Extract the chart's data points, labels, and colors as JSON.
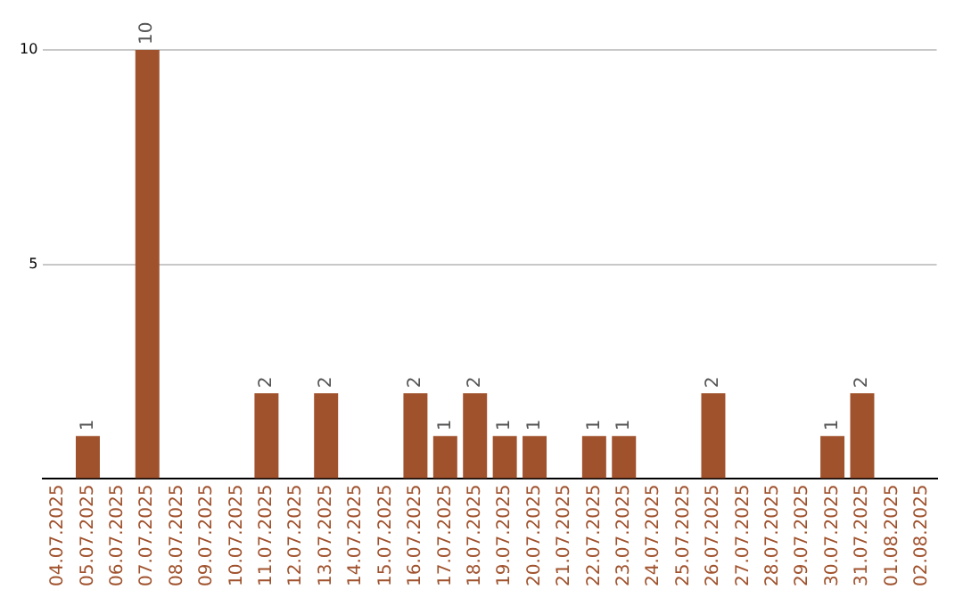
{
  "chart_data": {
    "type": "bar",
    "categories": [
      "04.07.2025",
      "05.07.2025",
      "06.07.2025",
      "07.07.2025",
      "08.07.2025",
      "09.07.2025",
      "10.07.2025",
      "11.07.2025",
      "12.07.2025",
      "13.07.2025",
      "14.07.2025",
      "15.07.2025",
      "16.07.2025",
      "17.07.2025",
      "18.07.2025",
      "19.07.2025",
      "20.07.2025",
      "21.07.2025",
      "22.07.2025",
      "23.07.2025",
      "24.07.2025",
      "25.07.2025",
      "26.07.2025",
      "27.07.2025",
      "28.07.2025",
      "29.07.2025",
      "30.07.2025",
      "31.07.2025",
      "01.08.2025",
      "02.08.2025"
    ],
    "values": [
      0,
      1,
      0,
      10,
      0,
      0,
      0,
      2,
      0,
      2,
      0,
      0,
      2,
      1,
      2,
      1,
      1,
      0,
      1,
      1,
      0,
      0,
      2,
      0,
      0,
      0,
      1,
      2,
      0,
      0
    ],
    "value_labels": [
      null,
      "1",
      null,
      "10",
      null,
      null,
      null,
      "2",
      null,
      "2",
      null,
      null,
      "2",
      "1",
      "2",
      "1",
      "1",
      null,
      "1",
      "1",
      null,
      null,
      "2",
      null,
      null,
      null,
      "1",
      "2",
      null,
      null
    ],
    "color": "#a0522d",
    "ylim": [
      0,
      10
    ],
    "yticks": [
      {
        "value": 0,
        "label": null
      },
      5,
      10
    ],
    "grid": "y",
    "legend": false
  }
}
